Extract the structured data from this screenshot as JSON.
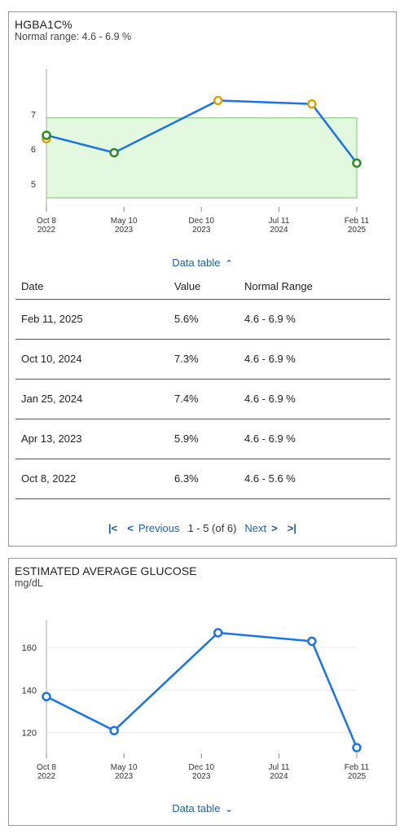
{
  "hgb": {
    "title": "HGBA1C%",
    "subtitle": "Normal range: 4.6 - 6.9 %",
    "chart_data": {
      "type": "line",
      "x": [
        "2022-10-08",
        "2023-04-13",
        "2024-01-25",
        "2024-10-10",
        "2025-02-11"
      ],
      "series": [
        {
          "values": [
            6.3,
            5.9,
            7.4,
            7.3,
            5.6
          ]
        }
      ],
      "extra_point": {
        "x": "2022-10-08",
        "y": 6.4
      },
      "normal_range": [
        4.6,
        6.9
      ],
      "y_ticks": [
        "7",
        "6",
        "5"
      ],
      "x_ticks": [
        {
          "line1": "Oct 8",
          "line2": "2022"
        },
        {
          "line1": "May 10",
          "line2": "2023"
        },
        {
          "line1": "Dec 10",
          "line2": "2023"
        },
        {
          "line1": "Jul 11",
          "line2": "2024"
        },
        {
          "line1": "Feb 11",
          "line2": "2025"
        }
      ],
      "colors": {
        "line": "#1a73e8",
        "in_range": "#2e8b1f",
        "out_of_range": "#d9a400",
        "band": "#e2f8df",
        "band_border": "#78c46c"
      }
    },
    "toggle_label": "Data table",
    "table": {
      "headers": [
        "Date",
        "Value",
        "Normal Range"
      ],
      "rows": [
        [
          "Feb 11, 2025",
          "5.6%",
          "4.6 - 6.9 %"
        ],
        [
          "Oct 10, 2024",
          "7.3%",
          "4.6 - 6.9 %"
        ],
        [
          "Jan 25, 2024",
          "7.4%",
          "4.6 - 6.9 %"
        ],
        [
          "Apr 13, 2023",
          "5.9%",
          "4.6 - 6.9 %"
        ],
        [
          "Oct 8, 2022",
          "6.3%",
          "4.6 - 5.6 %"
        ]
      ]
    },
    "pager": {
      "previous": "Previous",
      "range": "1 - 5 (of 6)",
      "next": "Next"
    }
  },
  "glucose": {
    "title": "ESTIMATED AVERAGE GLUCOSE",
    "subtitle": "mg/dL",
    "chart_data": {
      "type": "line",
      "x": [
        "2022-10-08",
        "2023-04-13",
        "2024-01-25",
        "2024-10-10",
        "2025-02-11"
      ],
      "series": [
        {
          "values": [
            137,
            121,
            167,
            163,
            113
          ]
        }
      ],
      "y_ticks": [
        "160",
        "140",
        "120"
      ],
      "x_ticks": [
        {
          "line1": "Oct 8",
          "line2": "2022"
        },
        {
          "line1": "May 10",
          "line2": "2023"
        },
        {
          "line1": "Dec 10",
          "line2": "2023"
        },
        {
          "line1": "Jul 11",
          "line2": "2024"
        },
        {
          "line1": "Feb 11",
          "line2": "2025"
        }
      ],
      "colors": {
        "line": "#1a73e8",
        "point": "#1a73e8"
      }
    },
    "toggle_label": "Data table"
  }
}
